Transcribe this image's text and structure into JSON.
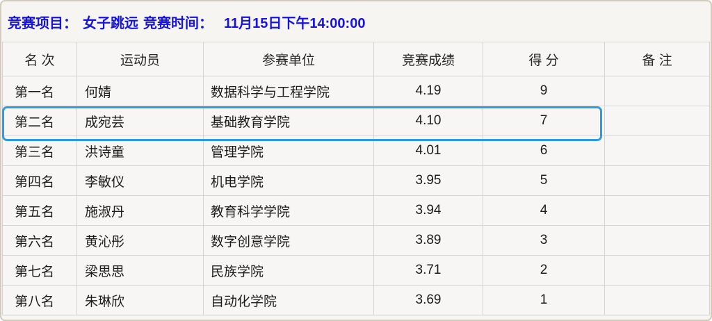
{
  "title_bar": {
    "event_label": "竞赛项目：",
    "event_value": "女子跳远",
    "time_label": "竞赛时间：",
    "time_value": "11月15日下午14:00:00"
  },
  "colors": {
    "title_text": "#1513dd",
    "highlight_border": "#2d9ce6",
    "table_border": "#d5d4d2",
    "window_background": "#f6f5f2"
  },
  "table": {
    "columns": [
      "名 次",
      "运动员",
      "参赛单位",
      "竞赛成绩",
      "得 分",
      "备 注"
    ],
    "highlighted_row_index": 1,
    "rows": [
      {
        "rank": "第一名",
        "athlete": "何婧",
        "unit": "数据科学与工程学院",
        "result": "4.19",
        "points": "9",
        "remark": ""
      },
      {
        "rank": "第二名",
        "athlete": "成宛芸",
        "unit": "基础教育学院",
        "result": "4.10",
        "points": "7",
        "remark": ""
      },
      {
        "rank": "第三名",
        "athlete": "洪诗童",
        "unit": "管理学院",
        "result": "4.01",
        "points": "6",
        "remark": ""
      },
      {
        "rank": "第四名",
        "athlete": "李敏仪",
        "unit": "机电学院",
        "result": "3.95",
        "points": "5",
        "remark": ""
      },
      {
        "rank": "第五名",
        "athlete": "施淑丹",
        "unit": "教育科学学院",
        "result": "3.94",
        "points": "4",
        "remark": ""
      },
      {
        "rank": "第六名",
        "athlete": "黄沁彤",
        "unit": "数字创意学院",
        "result": "3.89",
        "points": "3",
        "remark": ""
      },
      {
        "rank": "第七名",
        "athlete": "梁思思",
        "unit": "民族学院",
        "result": "3.71",
        "points": "2",
        "remark": ""
      },
      {
        "rank": "第八名",
        "athlete": "朱琳欣",
        "unit": "自动化学院",
        "result": "3.69",
        "points": "1",
        "remark": ""
      }
    ]
  }
}
